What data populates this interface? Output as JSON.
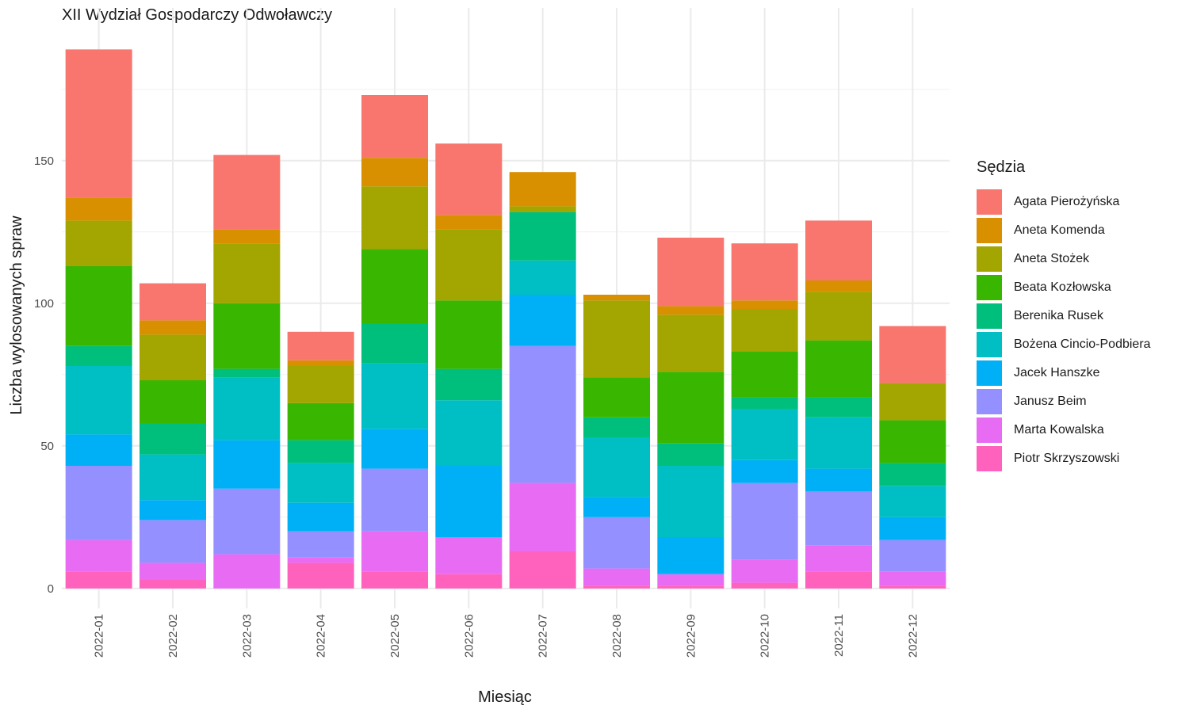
{
  "chart_data": {
    "type": "bar",
    "stacked": true,
    "title": "XII Wydział Gospodarczy Odwoławczy",
    "xlabel": "Miesiąc",
    "ylabel": "Liczba wylosowanych spraw",
    "legend_title": "Sędzia",
    "legend_position": "right",
    "grid": true,
    "ylim": [
      -7,
      198
    ],
    "yticks": [
      0,
      50,
      100,
      150
    ],
    "categories": [
      "2022-01",
      "2022-02",
      "2022-03",
      "2022-04",
      "2022-05",
      "2022-06",
      "2022-07",
      "2022-08",
      "2022-09",
      "2022-10",
      "2022-11",
      "2022-12"
    ],
    "series": [
      {
        "name": "Agata Pierożyńska",
        "color": "#F8766D",
        "values": [
          52,
          13,
          26,
          10,
          22,
          25,
          0,
          0,
          24,
          20,
          21,
          20
        ]
      },
      {
        "name": "Aneta Komenda",
        "color": "#D89000",
        "values": [
          8,
          5,
          5,
          2,
          10,
          5,
          12,
          2,
          3,
          3,
          4,
          0
        ]
      },
      {
        "name": "Aneta Stożek",
        "color": "#A3A500",
        "values": [
          16,
          16,
          21,
          13,
          22,
          25,
          2,
          27,
          20,
          15,
          17,
          13
        ]
      },
      {
        "name": "Beata Kozłowska",
        "color": "#39B600",
        "values": [
          28,
          15,
          23,
          13,
          26,
          24,
          0,
          14,
          25,
          16,
          20,
          15
        ]
      },
      {
        "name": "Berenika Rusek",
        "color": "#00BF7D",
        "values": [
          7,
          11,
          3,
          8,
          14,
          11,
          17,
          7,
          8,
          4,
          7,
          8
        ]
      },
      {
        "name": "Bożena Cincio-Podbiera",
        "color": "#00BFC4",
        "values": [
          24,
          16,
          22,
          14,
          23,
          23,
          12,
          21,
          25,
          18,
          18,
          11
        ]
      },
      {
        "name": "Jacek Hanszke",
        "color": "#00B0F6",
        "values": [
          11,
          7,
          17,
          10,
          14,
          25,
          18,
          7,
          13,
          8,
          8,
          8
        ]
      },
      {
        "name": "Janusz Beim",
        "color": "#9590FF",
        "values": [
          26,
          15,
          23,
          9,
          22,
          0,
          48,
          18,
          0,
          27,
          19,
          11
        ]
      },
      {
        "name": "Marta Kowalska",
        "color": "#E76BF3",
        "values": [
          11,
          6,
          12,
          2,
          14,
          13,
          24,
          6,
          4,
          8,
          9,
          5
        ]
      },
      {
        "name": "Piotr Skrzyszowski",
        "color": "#FF62BC",
        "values": [
          6,
          3,
          0,
          9,
          6,
          5,
          13,
          1,
          1,
          2,
          6,
          1
        ]
      }
    ]
  }
}
